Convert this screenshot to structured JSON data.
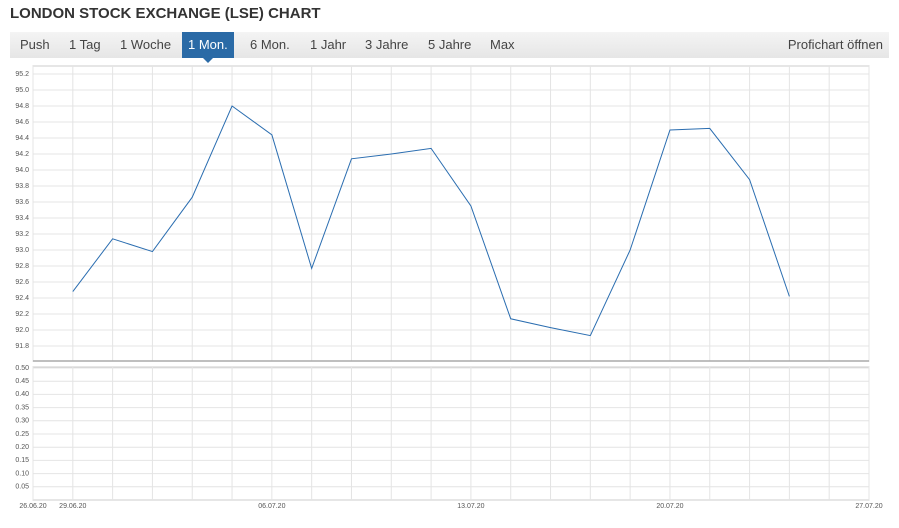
{
  "title": "LONDON STOCK EXCHANGE (LSE) CHART",
  "tabs": [
    "Push",
    "1 Tag",
    "1 Woche",
    "1 Mon.",
    "6 Mon.",
    "1 Jahr",
    "3 Jahre",
    "5 Jahre",
    "Max"
  ],
  "link": "Profichart öffnen",
  "chart_data": [
    {
      "type": "line",
      "categories": [
        "26.06.20",
        "29.06.20",
        null,
        null,
        null,
        null,
        "06.07.20",
        null,
        null,
        null,
        null,
        "13.07.20",
        null,
        null,
        null,
        null,
        "20.07.20",
        null,
        null,
        null,
        null,
        "27.07.20"
      ],
      "values": [
        null,
        92.48,
        93.14,
        92.98,
        93.66,
        94.8,
        94.44,
        92.77,
        94.14,
        94.2,
        94.27,
        93.55,
        92.14,
        92.03,
        91.93,
        93.0,
        94.5,
        94.52,
        93.88,
        92.42,
        null,
        null
      ],
      "color": "#2a6db0",
      "ylim": [
        91.6,
        95.2
      ],
      "yticks": [
        {
          "value": 91.8,
          "label": "91.8"
        },
        {
          "value": 92.0,
          "label": "92.0"
        },
        92.2,
        92.4,
        92.6,
        92.8,
        {
          "value": 93.0,
          "label": "93.0"
        },
        93.2,
        93.4,
        93.6,
        93.8,
        {
          "value": 94.0,
          "label": "94.0"
        },
        94.2,
        94.4,
        94.6,
        94.8,
        {
          "value": 95.0,
          "label": "95.0"
        },
        95.2
      ],
      "grid": true
    },
    {
      "type": "bar",
      "ylim": [
        0,
        0.5
      ],
      "yticks": [
        0.05,
        {
          "value": 0.1,
          "label": "0.10"
        },
        0.15,
        {
          "value": 0.2,
          "label": "0.20"
        },
        0.25,
        {
          "value": 0.3,
          "label": "0.30"
        },
        0.35,
        {
          "value": 0.4,
          "label": "0.40"
        },
        0.45,
        {
          "value": 0.5,
          "label": "0.50"
        }
      ],
      "grid": true
    }
  ]
}
